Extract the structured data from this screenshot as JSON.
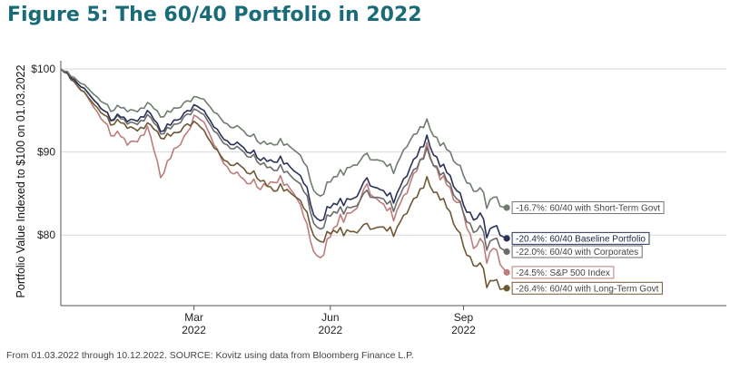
{
  "title": "Figure 5: The 60/40 Portfolio in 2022",
  "footnote": "From 01.03.2022 through 10.12.2022.  SOURCE: Kovitz using data from Bloomberg Finance L.P.",
  "chart_data": {
    "type": "line",
    "ylabel": "Portfolio Value Indexed to $100 on 01.03.2022",
    "xlabel": "",
    "ylim": [
      71.5,
      101
    ],
    "xlim": [
      0,
      200
    ],
    "y_ticks": [
      {
        "value": 100,
        "label": "$100"
      },
      {
        "value": 90,
        "label": "$90"
      },
      {
        "value": 80,
        "label": "$80"
      }
    ],
    "x_ticks": [
      {
        "value": 40,
        "month": "Mar",
        "year": "2022"
      },
      {
        "value": 81,
        "month": "Jun",
        "year": "2022"
      },
      {
        "value": 121,
        "month": "Sep",
        "year": "2022"
      }
    ],
    "grid": "horizontal",
    "x_anchors": [
      0,
      8,
      14,
      20,
      26,
      30,
      34,
      38,
      40,
      44,
      48,
      54,
      60,
      64,
      70,
      74,
      76,
      78,
      80,
      84,
      88,
      92,
      96,
      100,
      104,
      108,
      110,
      114,
      118,
      121,
      124,
      126,
      128,
      130,
      132,
      134
    ],
    "series": [
      {
        "name": "S&P 500 Index",
        "end_label": "-24.5%: S&P 500 Index",
        "color": "#bd7c7d",
        "jitter": 0.6,
        "anchors": [
          100,
          97,
          93,
          91,
          92.5,
          87.3,
          90,
          92.4,
          94.2,
          93.0,
          89.3,
          87.2,
          85.5,
          87.2,
          85.3,
          81.0,
          77.5,
          77.0,
          79.0,
          82.0,
          83.0,
          85.7,
          84.0,
          82.5,
          85.5,
          89.0,
          90.5,
          87.0,
          85.0,
          83.0,
          78.0,
          80.0,
          77.0,
          79.0,
          76.5,
          75.5
        ]
      },
      {
        "name": "60/40 with Long-Term Govt",
        "end_label": "-26.4%: 60/40 with Long-Term Govt",
        "color": "#6e5734",
        "jitter": 0.5,
        "anchors": [
          100,
          97,
          94.0,
          93.0,
          93.0,
          92.0,
          92.0,
          93.4,
          93.5,
          92.0,
          89.5,
          88.5,
          86.5,
          86.0,
          85.0,
          82.5,
          79.5,
          79.0,
          80.0,
          80.5,
          80.5,
          81.0,
          81.0,
          80.5,
          83.0,
          85.5,
          86.5,
          84.5,
          82.0,
          79.0,
          76.0,
          77.0,
          74.0,
          75.0,
          73.5,
          73.6
        ]
      },
      {
        "name": "60/40 with Corporates",
        "end_label": "-22.0%: 60/40 with Corporates",
        "color": "#6b6b6b",
        "jitter": 0.5,
        "anchors": [
          100,
          97.5,
          94.5,
          93.5,
          94.0,
          92.5,
          93.0,
          94.6,
          95.0,
          94.0,
          91.5,
          90.5,
          88.5,
          88.5,
          87.0,
          84.5,
          81.0,
          80.5,
          82.0,
          83.0,
          83.5,
          85.0,
          84.5,
          83.5,
          86.5,
          89.0,
          90.0,
          87.5,
          85.5,
          83.0,
          80.0,
          81.5,
          78.5,
          80.0,
          78.5,
          78.0
        ]
      },
      {
        "name": "60/40 Baseline Portfolio",
        "end_label": "-20.4%: 60/40 Baseline Portfolio",
        "color": "#2a3157",
        "jitter": 0.5,
        "anchors": [
          100,
          97.5,
          94.5,
          93.8,
          94.5,
          92.8,
          93.5,
          95.0,
          95.5,
          94.5,
          92.0,
          91.0,
          89.0,
          89.5,
          88.0,
          85.5,
          82.0,
          81.5,
          83.0,
          84.0,
          84.5,
          86.5,
          85.5,
          84.5,
          87.5,
          90.5,
          91.5,
          88.5,
          86.5,
          84.0,
          81.5,
          83.0,
          80.0,
          81.5,
          80.0,
          79.6
        ]
      },
      {
        "name": "60/40 with Short-Term Govt",
        "end_label": "-16.7%: 60/40 with Short-Term Govt",
        "color": "#6f7c6e",
        "jitter": 0.45,
        "anchors": [
          100,
          98.0,
          95.5,
          95.0,
          95.5,
          94.5,
          95.0,
          96.2,
          96.5,
          96.0,
          94.0,
          93.0,
          91.0,
          91.5,
          90.5,
          88.0,
          85.0,
          84.5,
          86.0,
          87.5,
          88.5,
          89.5,
          89.0,
          88.0,
          91.0,
          93.0,
          93.5,
          91.0,
          89.5,
          87.5,
          85.0,
          86.0,
          83.5,
          85.0,
          83.5,
          83.3
        ]
      }
    ]
  }
}
